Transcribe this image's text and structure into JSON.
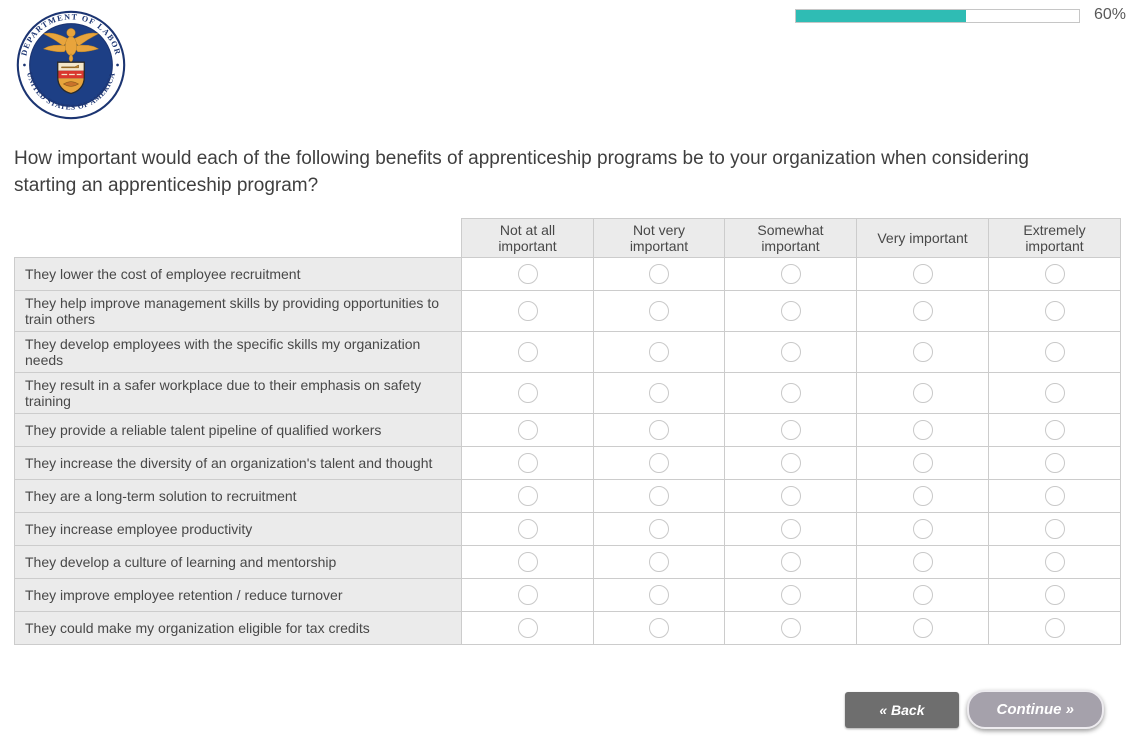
{
  "header": {
    "logo": {
      "arc_top_text": "DEPARTMENT OF LABOR",
      "arc_bottom_text": "UNITED STATES OF AMERICA",
      "field_color": "#1d3f85",
      "emblem_color": "#e8a43c"
    },
    "progress": {
      "percent": 60,
      "label": "60%",
      "fill_color": "#2fbcb4"
    }
  },
  "question": {
    "text": "How important would each of the following benefits of apprenticeship programs be to your organization when considering starting an apprenticeship program?"
  },
  "matrix": {
    "columns": [
      "Not at all\nimportant",
      "Not very\nimportant",
      "Somewhat\nimportant",
      "Very important",
      "Extremely\nimportant"
    ],
    "rows": [
      "They lower the cost of employee recruitment",
      "They help improve management skills by providing opportunities to train others",
      "They develop employees with the specific skills my organization needs",
      "They result in a safer workplace due to their emphasis on safety training",
      "They provide a reliable talent pipeline of qualified workers",
      "They increase the diversity of an organization's talent and thought",
      "They are a long-term solution to recruitment",
      "They increase employee productivity",
      "They develop a culture of learning and mentorship",
      "They improve employee retention / reduce turnover",
      "They could make my organization eligible for tax credits"
    ]
  },
  "footer": {
    "back_label": "« Back",
    "continue_label": "Continue »"
  }
}
